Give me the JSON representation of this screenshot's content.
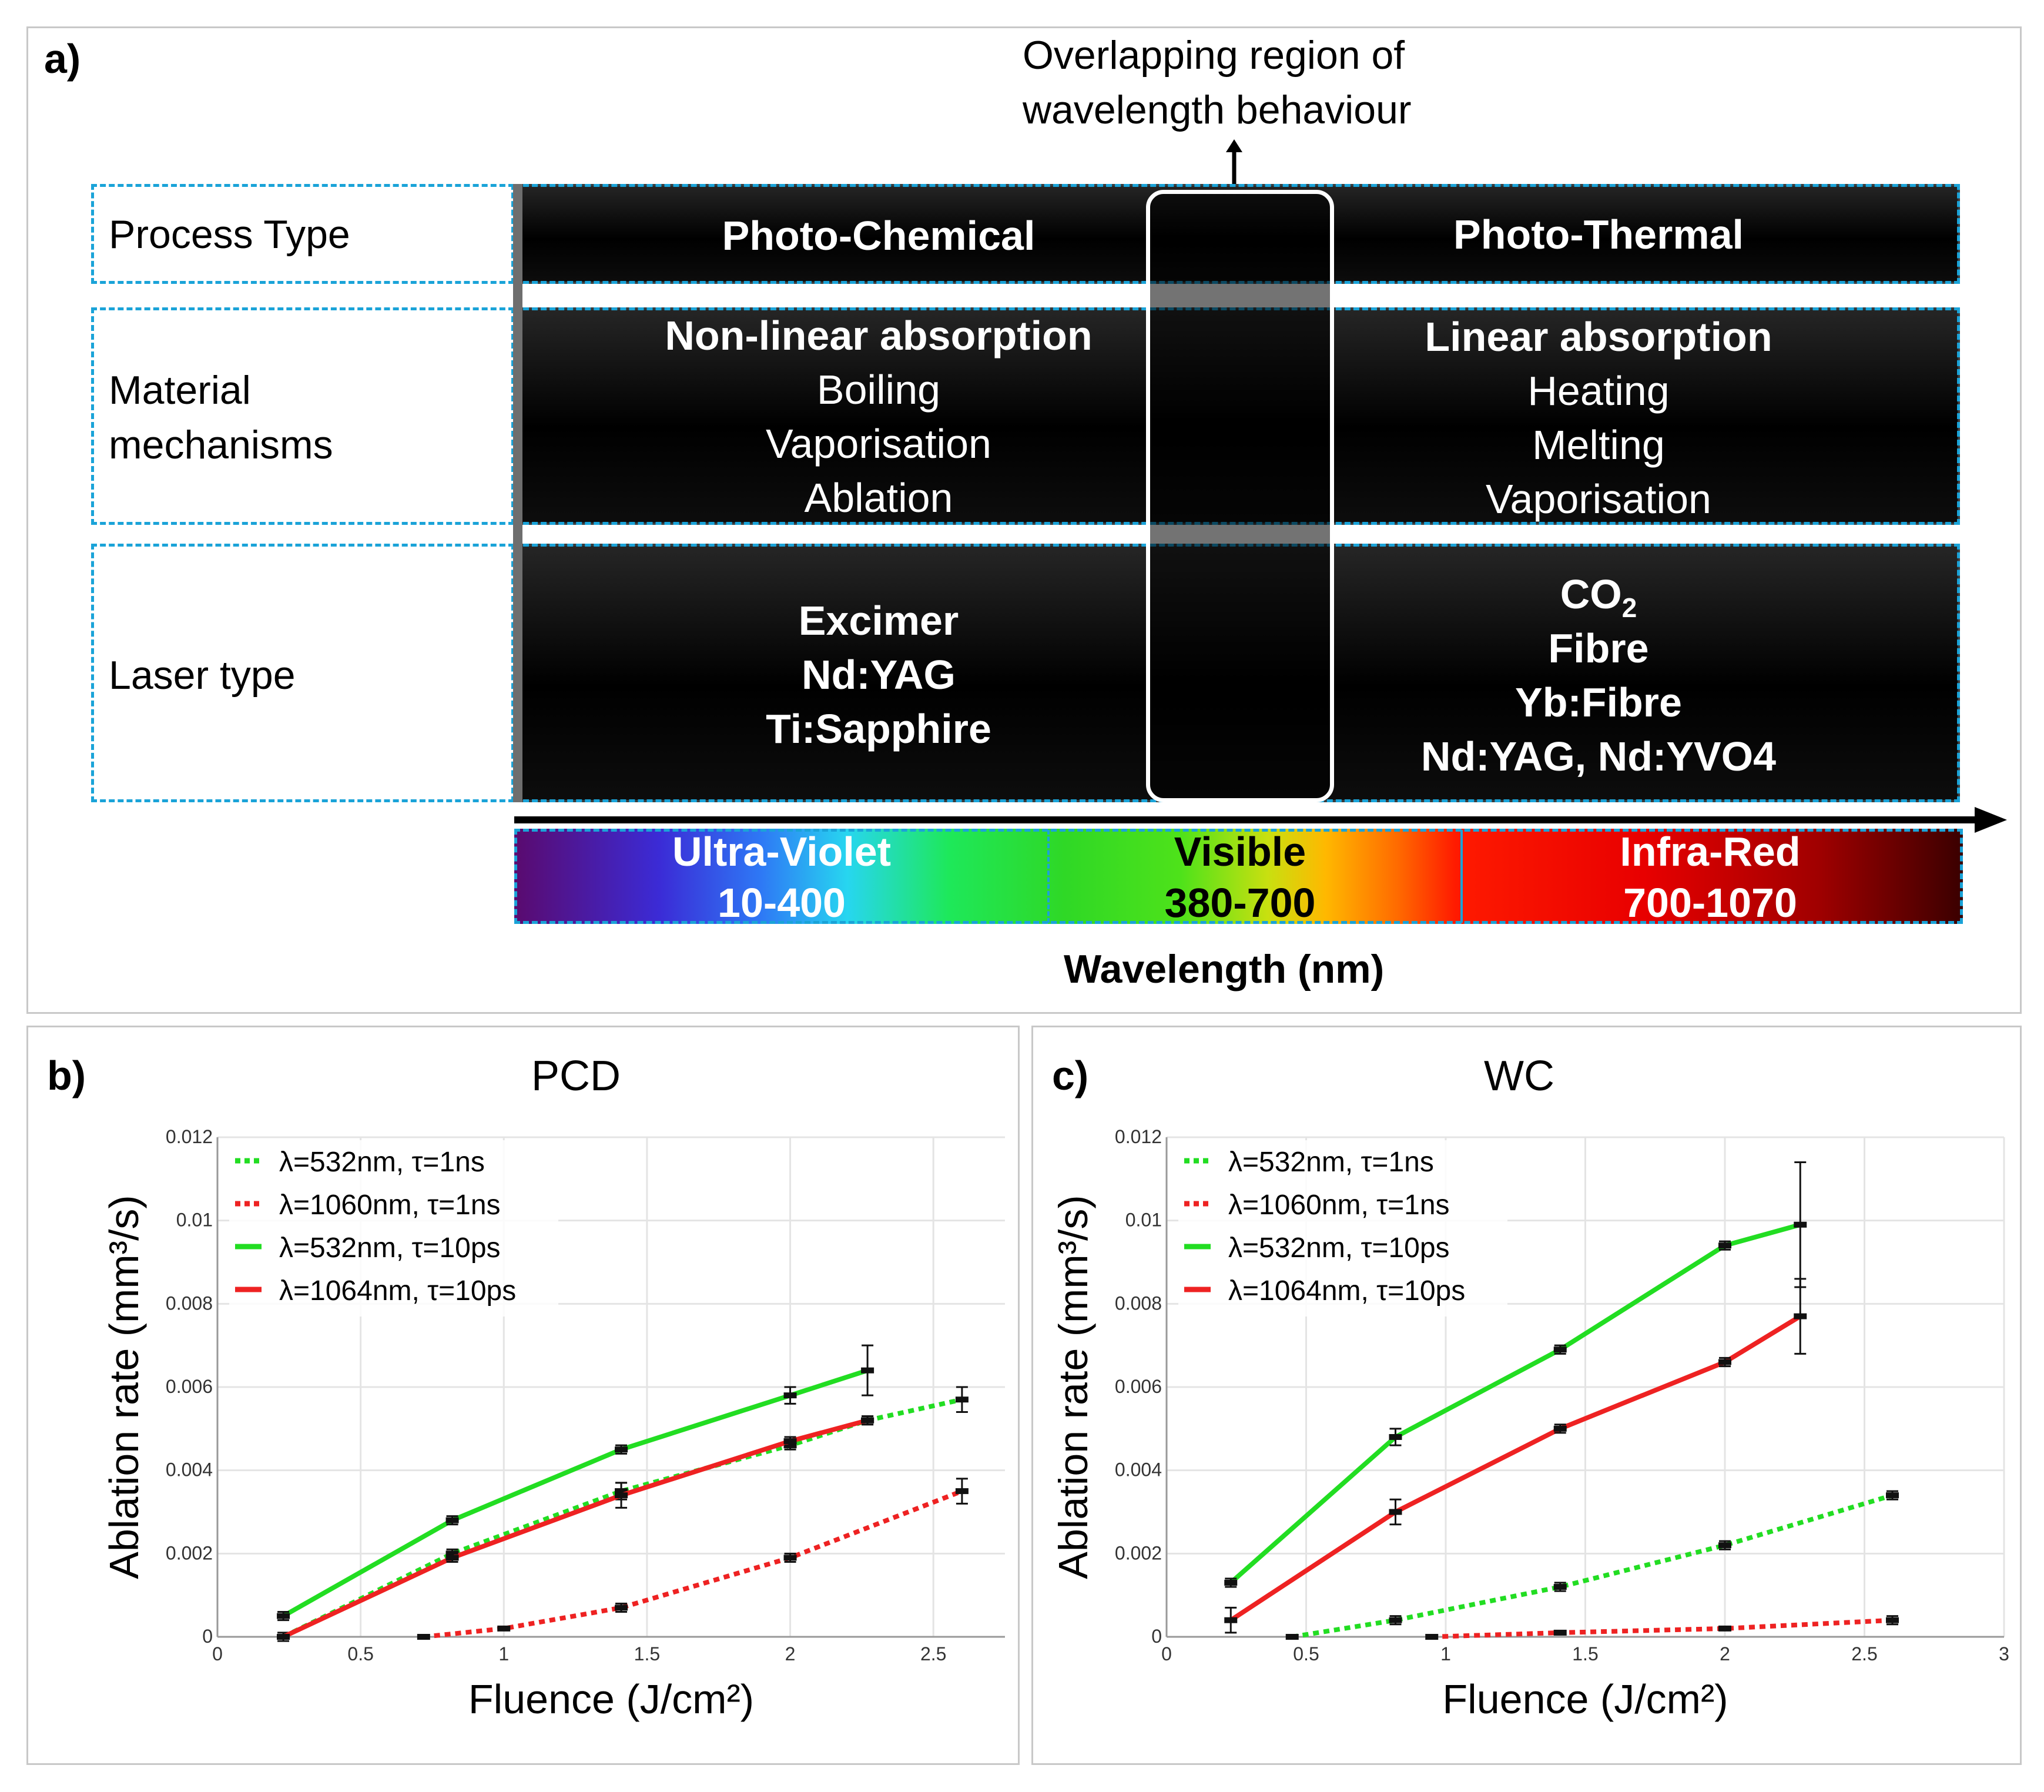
{
  "panel_a": {
    "letter": "a)",
    "overlap_label_line1": "Overlapping region of",
    "overlap_label_line2": "wavelength behaviour",
    "rows": [
      {
        "label_lines": [
          "Process Type"
        ]
      },
      {
        "label_lines": [
          "Material",
          "mechanisms"
        ]
      },
      {
        "label_lines": [
          "Laser type"
        ]
      }
    ],
    "process": {
      "left": "Photo-Chemical",
      "right": "Photo-Thermal"
    },
    "mechanisms": {
      "left": [
        "Non-linear absorption",
        "Boiling",
        "Vaporisation",
        "Ablation"
      ],
      "right": [
        "Linear absorption",
        "Heating",
        "Melting",
        "Vaporisation"
      ]
    },
    "lasers": {
      "left": [
        "Excimer",
        "Nd:YAG",
        "Ti:Sapphire"
      ],
      "right_co2": "CO",
      "right_co2_sub": "2",
      "right": [
        "Fibre",
        "Yb:Fibre",
        "Nd:YAG, Nd:YVO4"
      ]
    },
    "spectrum": [
      {
        "name": "Ultra-Violet",
        "range": "10-400",
        "text_color": "#ffffff"
      },
      {
        "name": "Visible",
        "range": "380-700",
        "text_color": "#000000"
      },
      {
        "name": "Infra-Red",
        "range": "700-1070",
        "text_color": "#ffffff"
      }
    ],
    "axis_label": "Wavelength (nm)"
  },
  "chart_data": [
    {
      "panel": "b)",
      "title": "PCD",
      "type": "line",
      "xlabel": "Fluence (J/cm²)",
      "ylabel": "Ablation rate (mm³/s)",
      "xlim": [
        0,
        2.75
      ],
      "ylim": [
        0,
        0.012
      ],
      "xticks": [
        "0",
        "0.5",
        "1",
        "1.5",
        "2",
        "2.5"
      ],
      "xtick_values": [
        0,
        0.5,
        1,
        1.5,
        2,
        2.5
      ],
      "yticks": [
        "0",
        "0.002",
        "0.004",
        "0.006",
        "0.008",
        "0.01",
        "0.012"
      ],
      "ytick_values": [
        0,
        0.002,
        0.004,
        0.006,
        0.008,
        0.01,
        0.012
      ],
      "grid": true,
      "legend_position": "top-left",
      "series": [
        {
          "name": "λ=532nm, τ=1ns",
          "color": "#22dd22",
          "dashed": true,
          "x": [
            0.23,
            0.82,
            1.41,
            2.0,
            2.27,
            2.6
          ],
          "y": [
            0.0,
            0.002,
            0.0035,
            0.0046,
            0.0052,
            0.0057
          ],
          "err": [
            0.0001,
            0.0001,
            0.0002,
            0.0001,
            0.0001,
            0.0003
          ]
        },
        {
          "name": "λ=1060nm, τ=1ns",
          "color": "#ee2222",
          "dashed": true,
          "x": [
            0.72,
            1.0,
            1.41,
            2.0,
            2.6
          ],
          "y": [
            0.0,
            0.0002,
            0.0007,
            0.0019,
            0.0035
          ],
          "err": [
            0.0,
            0.0,
            0.0001,
            0.0001,
            0.0003
          ]
        },
        {
          "name": "λ=532nm, τ=10ps",
          "color": "#22dd22",
          "dashed": false,
          "x": [
            0.23,
            0.82,
            1.41,
            2.0,
            2.27
          ],
          "y": [
            0.0005,
            0.0028,
            0.0045,
            0.0058,
            0.0064
          ],
          "err": [
            0.0001,
            0.0001,
            0.0001,
            0.0002,
            0.0006
          ]
        },
        {
          "name": "λ=1064nm, τ=10ps",
          "color": "#ee2222",
          "dashed": false,
          "x": [
            0.23,
            0.82,
            1.41,
            2.0,
            2.27
          ],
          "y": [
            0.0,
            0.0019,
            0.0034,
            0.0047,
            0.0052
          ],
          "err": [
            0.0,
            0.0001,
            0.0003,
            0.0001,
            0.0001
          ]
        }
      ]
    },
    {
      "panel": "c)",
      "title": "WC",
      "type": "line",
      "xlabel": "Fluence (J/cm²)",
      "ylabel": "Ablation rate (mm³/s)",
      "xlim": [
        0,
        3
      ],
      "ylim": [
        0,
        0.012
      ],
      "xticks": [
        "0",
        "0.5",
        "1",
        "1.5",
        "2",
        "2.5",
        "3"
      ],
      "xtick_values": [
        0,
        0.5,
        1,
        1.5,
        2,
        2.5,
        3
      ],
      "yticks": [
        "0",
        "0.002",
        "0.004",
        "0.006",
        "0.008",
        "0.01",
        "0.012"
      ],
      "ytick_values": [
        0,
        0.002,
        0.004,
        0.006,
        0.008,
        0.01,
        0.012
      ],
      "grid": true,
      "legend_position": "top-left",
      "series": [
        {
          "name": "λ=532nm, τ=1ns",
          "color": "#22dd22",
          "dashed": true,
          "x": [
            0.45,
            0.82,
            1.41,
            2.0,
            2.6
          ],
          "y": [
            0.0,
            0.0004,
            0.0012,
            0.0022,
            0.0034
          ],
          "err": [
            0.0,
            0.0001,
            0.0001,
            0.0001,
            0.0001
          ]
        },
        {
          "name": "λ=1060nm, τ=1ns",
          "color": "#ee2222",
          "dashed": true,
          "x": [
            0.95,
            1.41,
            2.0,
            2.6
          ],
          "y": [
            0.0,
            0.0001,
            0.0002,
            0.0004
          ],
          "err": [
            0.0,
            0.0,
            0.0,
            0.0001
          ]
        },
        {
          "name": "λ=532nm, τ=10ps",
          "color": "#22dd22",
          "dashed": false,
          "x": [
            0.23,
            0.82,
            1.41,
            2.0,
            2.27
          ],
          "y": [
            0.0013,
            0.0048,
            0.0069,
            0.0094,
            0.0099
          ],
          "err": [
            0.0001,
            0.0002,
            0.0001,
            0.0001,
            0.0015
          ]
        },
        {
          "name": "λ=1064nm, τ=10ps",
          "color": "#ee2222",
          "dashed": false,
          "x": [
            0.23,
            0.82,
            1.41,
            2.0,
            2.27
          ],
          "y": [
            0.0004,
            0.003,
            0.005,
            0.0066,
            0.0077
          ],
          "err": [
            0.0003,
            0.0003,
            0.0001,
            0.0001,
            0.0009
          ]
        }
      ]
    }
  ]
}
